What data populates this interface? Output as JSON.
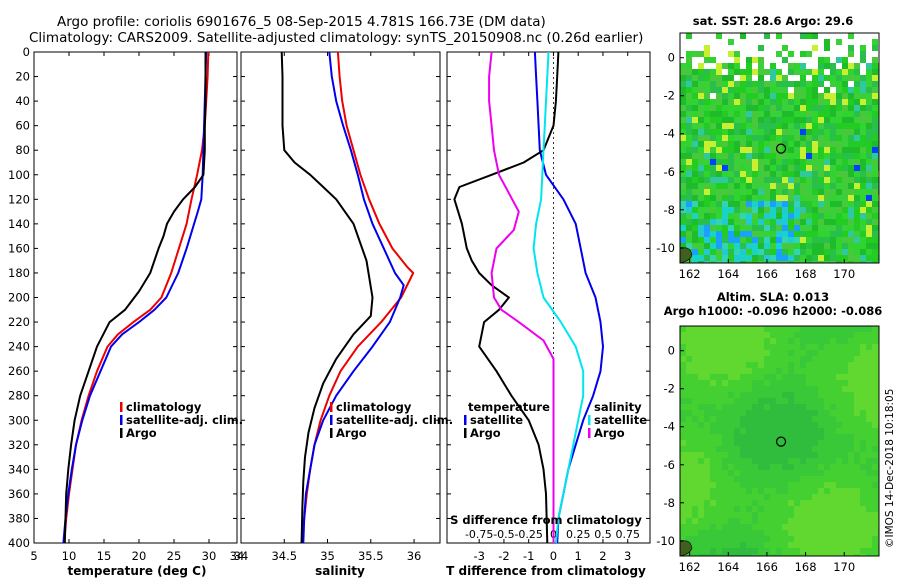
{
  "title_line1": "Argo profile: coriolis 6901676_5 08-Sep-2015 4.781S 166.73E (DM data)",
  "title_line2": "Climatology: CARS2009. Satellite-adjusted climatology: synTS_20150908.nc (0.26d earlier)",
  "watermark": "©IMOS 14-Dec-2018 10:18:05",
  "colors": {
    "red": "#ee0000",
    "blue": "#0000ee",
    "black": "#000000",
    "magenta": "#ee00ee",
    "cyan": "#00e5ee"
  },
  "chart_data": [
    {
      "type": "line",
      "name": "temperature",
      "xlabel": "temperature (deg C)",
      "ylabel": "",
      "xlim": [
        5,
        34
      ],
      "ylim": [
        400,
        0
      ],
      "xticks": [
        "5",
        "10",
        "15",
        "20",
        "25",
        "30",
        "34"
      ],
      "xtick_values": [
        5,
        10,
        15,
        20,
        25,
        30,
        34
      ],
      "yticks": [
        "0",
        "20",
        "40",
        "60",
        "80",
        "100",
        "120",
        "140",
        "160",
        "180",
        "200",
        "220",
        "240",
        "260",
        "280",
        "300",
        "320",
        "340",
        "360",
        "380",
        "400"
      ],
      "ytick_values": [
        0,
        20,
        40,
        60,
        80,
        100,
        120,
        140,
        160,
        180,
        200,
        220,
        240,
        260,
        280,
        300,
        320,
        340,
        360,
        380,
        400
      ],
      "legend_position": "lower-right",
      "series": [
        {
          "name": "climatology",
          "color": "#ee0000",
          "x": [
            29.9,
            29.8,
            29.6,
            29.4,
            29.0,
            28.3,
            27.5,
            26.8,
            25.7,
            24.6,
            23.2,
            21.6,
            19.2,
            17.0,
            15.5,
            14.0,
            12.8,
            11.8,
            11.0,
            10.5,
            10.0,
            9.6,
            9.3
          ],
          "y": [
            0,
            20,
            40,
            60,
            80,
            100,
            120,
            140,
            160,
            180,
            200,
            210,
            220,
            230,
            240,
            260,
            280,
            300,
            320,
            340,
            360,
            380,
            400
          ]
        },
        {
          "name": "satellite-adj. clim.",
          "color": "#0000ee",
          "x": [
            29.6,
            29.5,
            29.4,
            29.3,
            29.2,
            29.1,
            28.9,
            28.4,
            26.8,
            25.6,
            23.9,
            22.2,
            20.0,
            17.6,
            16.0,
            14.5,
            13.0,
            11.9,
            11.0,
            10.4,
            9.9,
            9.5,
            9.2
          ],
          "y": [
            0,
            20,
            40,
            60,
            80,
            100,
            120,
            130,
            160,
            180,
            200,
            210,
            220,
            230,
            240,
            260,
            280,
            300,
            320,
            340,
            360,
            380,
            400
          ]
        },
        {
          "name": "Argo",
          "color": "#000000",
          "x": [
            29.5,
            29.5,
            29.5,
            29.4,
            29.4,
            29.2,
            28.0,
            26.3,
            25.0,
            24.0,
            23.5,
            22.8,
            21.6,
            20.0,
            18.0,
            15.8,
            14.0,
            12.8,
            11.6,
            10.8,
            10.3,
            9.9,
            9.6,
            9.4
          ],
          "y": [
            0,
            20,
            40,
            60,
            80,
            100,
            110,
            120,
            130,
            140,
            150,
            160,
            180,
            195,
            210,
            220,
            240,
            260,
            280,
            300,
            320,
            340,
            360,
            400
          ]
        }
      ]
    },
    {
      "type": "line",
      "name": "salinity",
      "xlabel": "salinity",
      "xlim": [
        34,
        36.3
      ],
      "ylim": [
        400,
        0
      ],
      "xticks": [
        "34",
        "34.5",
        "35",
        "35.5",
        "36"
      ],
      "xtick_values": [
        34,
        34.5,
        35,
        35.5,
        36
      ],
      "legend_position": "lower-right",
      "series": [
        {
          "name": "climatology",
          "color": "#ee0000",
          "x": [
            35.12,
            35.14,
            35.17,
            35.22,
            35.3,
            35.38,
            35.48,
            35.6,
            35.75,
            35.92,
            35.99,
            35.85,
            35.62,
            35.35,
            35.15,
            35.02,
            34.92,
            34.85,
            34.8,
            34.76,
            34.73,
            34.71,
            34.7
          ],
          "y": [
            0,
            20,
            40,
            60,
            80,
            100,
            120,
            140,
            160,
            175,
            180,
            200,
            220,
            240,
            260,
            280,
            300,
            320,
            340,
            360,
            380,
            390,
            400
          ]
        },
        {
          "name": "satellite-adj. clim.",
          "color": "#0000ee",
          "x": [
            35.02,
            35.05,
            35.1,
            35.18,
            35.27,
            35.35,
            35.42,
            35.52,
            35.65,
            35.78,
            35.88,
            35.84,
            35.72,
            35.52,
            35.3,
            35.1,
            34.95,
            34.85,
            34.8,
            34.75,
            34.73,
            34.72
          ],
          "y": [
            0,
            20,
            40,
            60,
            80,
            100,
            120,
            140,
            160,
            180,
            190,
            200,
            220,
            240,
            260,
            280,
            300,
            320,
            340,
            360,
            380,
            400
          ]
        },
        {
          "name": "Argo",
          "color": "#000000",
          "x": [
            34.47,
            34.48,
            34.48,
            34.5,
            34.62,
            34.8,
            34.95,
            35.1,
            35.3,
            35.45,
            35.52,
            35.5,
            35.3,
            35.1,
            34.95,
            34.85,
            34.78,
            34.74,
            34.72,
            34.71,
            34.7
          ],
          "y": [
            0,
            20,
            60,
            80,
            90,
            100,
            110,
            120,
            140,
            170,
            200,
            215,
            230,
            250,
            270,
            290,
            310,
            330,
            350,
            370,
            400
          ]
        }
      ]
    },
    {
      "type": "line",
      "name": "differences",
      "xlabel": "T difference from climatology",
      "top_axis_label": "S difference from climatology",
      "xlim": [
        -4.3,
        3.9
      ],
      "ylim": [
        400,
        0
      ],
      "xticks": [
        "-3",
        "-2",
        "-1",
        "0",
        "1",
        "2",
        "3"
      ],
      "xtick_values": [
        -3,
        -2,
        -1,
        0,
        1,
        2,
        3
      ],
      "s_ticks": [
        "-0.75",
        "-0.5",
        "-0.25",
        "0",
        "0.25",
        "0.5",
        "0.75"
      ],
      "legend_left_title": "temperature",
      "legend_right_title": "salinity",
      "series": [
        {
          "name": "satellite",
          "group": "temperature",
          "color": "#0000ee",
          "x": [
            -0.75,
            -0.7,
            -0.65,
            -0.6,
            -0.55,
            -0.3,
            0.4,
            0.9,
            1.0,
            1.1,
            1.3,
            1.7,
            1.9,
            2.0,
            1.9,
            1.6,
            1.2,
            0.9,
            0.6,
            0.4,
            0.3,
            0.2,
            0.15
          ],
          "y": [
            0,
            20,
            40,
            60,
            80,
            100,
            120,
            140,
            150,
            160,
            180,
            200,
            220,
            240,
            260,
            280,
            300,
            320,
            340,
            360,
            370,
            380,
            400
          ]
        },
        {
          "name": "Argo",
          "group": "temperature",
          "color": "#000000",
          "x": [
            0.2,
            0.15,
            0.1,
            0.0,
            -0.4,
            -1.2,
            -2.5,
            -3.8,
            -4.0,
            -3.7,
            -3.5,
            -3.3,
            -3.0,
            -2.5,
            -1.8,
            -2.2,
            -2.8,
            -3.0,
            -2.3,
            -1.7,
            -1.0,
            -0.6,
            -0.4,
            -0.3,
            -0.25
          ],
          "y": [
            0,
            20,
            40,
            60,
            80,
            90,
            100,
            110,
            120,
            140,
            160,
            170,
            180,
            190,
            200,
            210,
            220,
            240,
            260,
            280,
            300,
            320,
            340,
            360,
            400
          ]
        },
        {
          "name": "satellite",
          "group": "salinity",
          "color": "#00e5ee",
          "x": [
            -0.2,
            -0.25,
            -0.3,
            -0.35,
            -0.4,
            -0.45,
            -0.5,
            -0.7,
            -0.8,
            -0.65,
            -0.4,
            0.3,
            0.9,
            1.2,
            1.2,
            1.0,
            0.8,
            0.6,
            0.4,
            0.2,
            0.1
          ],
          "y": [
            0,
            20,
            40,
            60,
            80,
            100,
            120,
            140,
            160,
            180,
            200,
            220,
            240,
            260,
            280,
            300,
            320,
            340,
            360,
            380,
            400
          ]
        },
        {
          "name": "Argo",
          "group": "salinity",
          "color": "#ee00ee",
          "x": [
            -2.5,
            -2.6,
            -2.6,
            -2.5,
            -2.4,
            -2.2,
            -1.8,
            -1.4,
            -1.6,
            -2.3,
            -2.5,
            -2.4,
            -2.1,
            -1.4,
            -0.4,
            0.0,
            0.0,
            0.0,
            0.0,
            0.0
          ],
          "y": [
            0,
            20,
            40,
            60,
            80,
            100,
            115,
            130,
            145,
            160,
            180,
            200,
            210,
            220,
            235,
            250,
            280,
            320,
            360,
            400
          ]
        }
      ]
    },
    {
      "type": "heatmap",
      "name": "sst-map",
      "title": "sat. SST: 28.6 Argo: 29.6",
      "xticks": [
        "162",
        "164",
        "166",
        "168",
        "170"
      ],
      "xtick_values": [
        162,
        164,
        166,
        168,
        170
      ],
      "yticks": [
        "0",
        "-2",
        "-4",
        "-6",
        "-8",
        "-10"
      ],
      "ytick_values": [
        0,
        -2,
        -4,
        -6,
        -8,
        -10
      ],
      "xlim": [
        161.5,
        171.8
      ],
      "ylim": [
        -10.8,
        1.3
      ],
      "marker": {
        "lon": 166.73,
        "lat": -4.781
      }
    },
    {
      "type": "heatmap",
      "name": "sla-map",
      "title": "Altim. SLA: 0.013",
      "subtitle": "Argo h1000: -0.096 h2000: -0.086",
      "xticks": [
        "162",
        "164",
        "166",
        "168",
        "170"
      ],
      "xtick_values": [
        162,
        164,
        166,
        168,
        170
      ],
      "yticks": [
        "0",
        "-2",
        "-4",
        "-6",
        "-8",
        "-10"
      ],
      "ytick_values": [
        0,
        -2,
        -4,
        -6,
        -8,
        -10
      ],
      "xlim": [
        161.5,
        171.8
      ],
      "ylim": [
        -10.8,
        1.3
      ],
      "marker": {
        "lon": 166.73,
        "lat": -4.781
      }
    }
  ]
}
